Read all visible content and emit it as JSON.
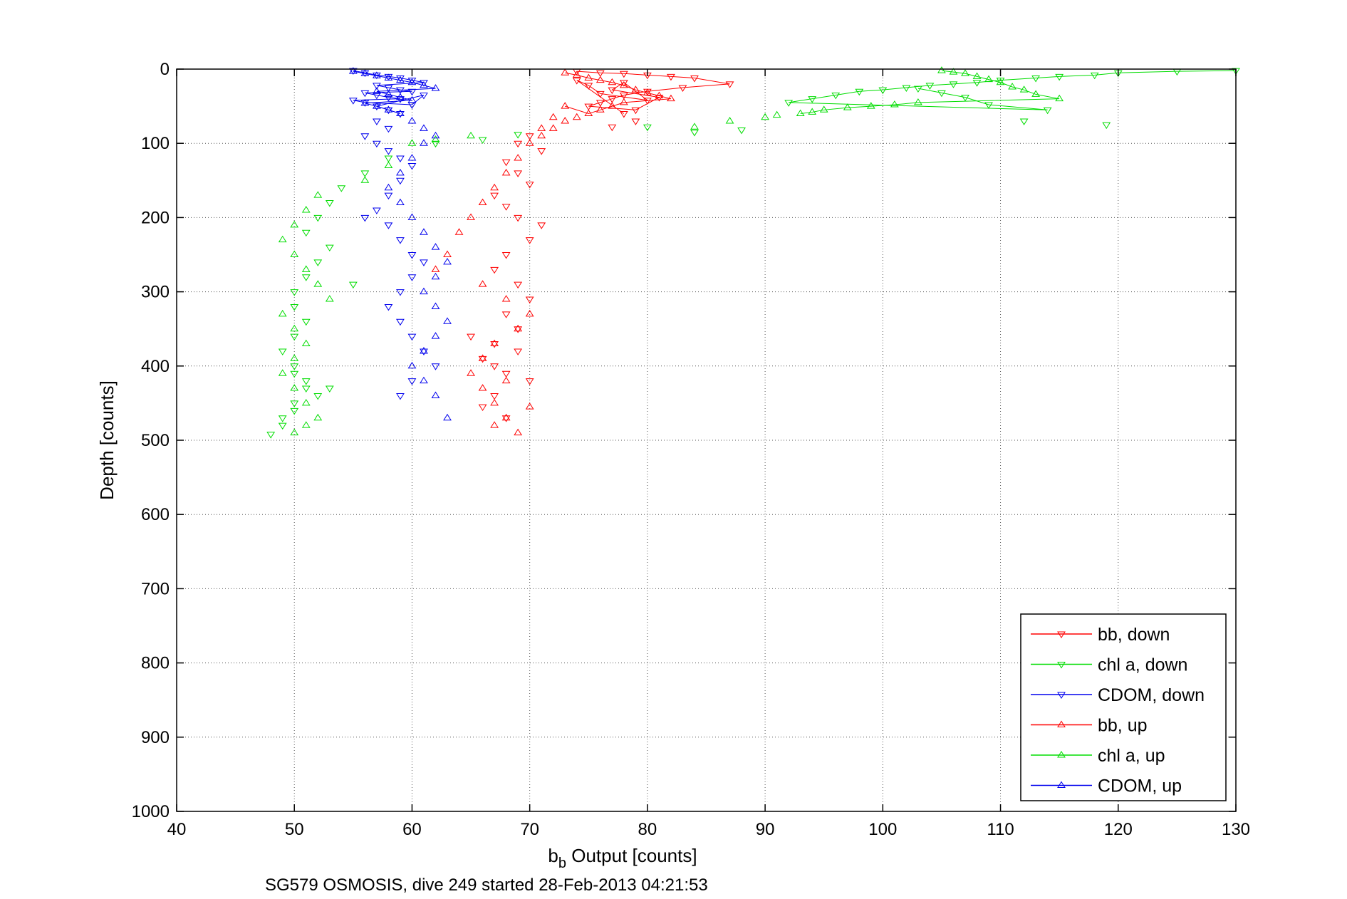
{
  "chart_data": {
    "type": "scatter",
    "title": "",
    "xlabel_main": "b",
    "xlabel_sub": "b",
    "xlabel_rest": " Output [counts]",
    "ylabel": "Depth [counts]",
    "caption": "SG579 OSMOSIS, dive 249 started 28-Feb-2013 04:21:53",
    "xlim": [
      40,
      130
    ],
    "ylim": [
      0,
      1000
    ],
    "y_reversed": true,
    "xticks": [
      "40",
      "50",
      "60",
      "70",
      "80",
      "90",
      "100",
      "110",
      "120",
      "130"
    ],
    "yticks": [
      "0",
      "100",
      "200",
      "300",
      "400",
      "500",
      "600",
      "700",
      "800",
      "900",
      "1000"
    ],
    "grid": true,
    "legend_position": "bottom-right",
    "series": [
      {
        "name": "bb, down",
        "color": "#ff0000",
        "marker": "triangle-down",
        "x": [
          74,
          76,
          78,
          80,
          82,
          84,
          87,
          83,
          80,
          78,
          77,
          76,
          75,
          79,
          81,
          77,
          78,
          80,
          76,
          75,
          74,
          78,
          79,
          77,
          70,
          69,
          71,
          68,
          69,
          70,
          67,
          68,
          69,
          71,
          70,
          68,
          67,
          69,
          70,
          68,
          69,
          67,
          66,
          68,
          70,
          67,
          66,
          68,
          69,
          65,
          67
        ],
        "y": [
          3,
          5,
          6,
          8,
          10,
          12,
          20,
          25,
          30,
          35,
          40,
          45,
          50,
          55,
          38,
          28,
          18,
          42,
          33,
          22,
          15,
          60,
          70,
          78,
          90,
          100,
          110,
          125,
          140,
          155,
          170,
          185,
          200,
          210,
          230,
          250,
          270,
          290,
          310,
          330,
          350,
          370,
          390,
          410,
          420,
          440,
          455,
          470,
          380,
          360,
          400
        ]
      },
      {
        "name": "chl a, down",
        "color": "#00dd00",
        "marker": "triangle-down",
        "x": [
          130,
          125,
          120,
          118,
          115,
          113,
          110,
          108,
          106,
          104,
          102,
          100,
          98,
          96,
          94,
          92,
          112,
          119,
          114,
          109,
          107,
          105,
          103,
          88,
          84,
          80,
          69,
          66,
          62,
          58,
          56,
          54,
          53,
          52,
          51,
          53,
          52,
          51,
          50,
          50,
          51,
          50,
          49,
          50,
          51,
          52,
          50,
          49,
          48,
          49,
          50,
          51,
          50,
          55,
          53
        ],
        "y": [
          2,
          3,
          5,
          8,
          10,
          12,
          15,
          18,
          20,
          22,
          25,
          28,
          30,
          35,
          40,
          45,
          70,
          75,
          55,
          48,
          38,
          32,
          26,
          82,
          85,
          78,
          88,
          95,
          100,
          120,
          140,
          160,
          180,
          200,
          220,
          240,
          260,
          280,
          300,
          320,
          340,
          360,
          380,
          400,
          420,
          440,
          460,
          480,
          492,
          470,
          450,
          430,
          410,
          290,
          430
        ]
      },
      {
        "name": "CDOM, down",
        "color": "#0000ee",
        "marker": "triangle-down",
        "x": [
          55,
          56,
          57,
          58,
          59,
          60,
          61,
          57,
          58,
          59,
          60,
          56,
          57,
          58,
          59,
          55,
          56,
          60,
          61,
          57,
          58,
          59,
          57,
          58,
          56,
          57,
          58,
          59,
          60,
          59,
          58,
          57,
          56,
          58,
          59,
          60,
          61,
          60,
          59,
          58,
          59,
          60,
          61,
          62,
          60,
          59
        ],
        "y": [
          2,
          5,
          8,
          10,
          12,
          15,
          18,
          22,
          25,
          28,
          30,
          32,
          35,
          38,
          40,
          42,
          45,
          48,
          35,
          50,
          55,
          60,
          70,
          80,
          90,
          100,
          110,
          120,
          130,
          150,
          170,
          190,
          200,
          210,
          230,
          250,
          260,
          280,
          300,
          320,
          340,
          360,
          380,
          400,
          420,
          440
        ]
      },
      {
        "name": "bb, up",
        "color": "#ff0000",
        "marker": "triangle-up",
        "x": [
          73,
          74,
          75,
          76,
          77,
          78,
          79,
          80,
          81,
          82,
          78,
          77,
          76,
          75,
          74,
          73,
          72,
          71,
          70,
          69,
          68,
          67,
          66,
          65,
          64,
          63,
          62,
          66,
          68,
          70,
          69,
          67,
          66,
          65,
          66,
          67,
          68,
          69,
          70,
          71,
          72,
          73,
          67,
          68
        ],
        "y": [
          5,
          8,
          12,
          15,
          18,
          22,
          28,
          32,
          36,
          40,
          45,
          50,
          55,
          60,
          65,
          70,
          80,
          90,
          100,
          120,
          140,
          160,
          180,
          200,
          220,
          250,
          270,
          290,
          310,
          330,
          350,
          370,
          390,
          410,
          430,
          450,
          470,
          490,
          455,
          80,
          65,
          50,
          480,
          420
        ]
      },
      {
        "name": "chl a, up",
        "color": "#00dd00",
        "marker": "triangle-up",
        "x": [
          105,
          106,
          107,
          108,
          109,
          110,
          111,
          112,
          113,
          115,
          103,
          101,
          99,
          97,
          95,
          94,
          93,
          91,
          90,
          87,
          84,
          65,
          62,
          60,
          58,
          56,
          52,
          51,
          50,
          49,
          50,
          51,
          52,
          53,
          49,
          50,
          51,
          50,
          49,
          50,
          51,
          52,
          50,
          51
        ],
        "y": [
          2,
          4,
          6,
          10,
          14,
          18,
          24,
          28,
          34,
          40,
          45,
          48,
          50,
          52,
          55,
          58,
          60,
          62,
          65,
          70,
          78,
          90,
          95,
          100,
          130,
          150,
          170,
          190,
          210,
          230,
          250,
          270,
          290,
          310,
          330,
          350,
          370,
          390,
          410,
          430,
          450,
          470,
          490,
          480
        ]
      },
      {
        "name": "CDOM, up",
        "color": "#0000ee",
        "marker": "triangle-up",
        "x": [
          55,
          56,
          57,
          58,
          59,
          60,
          61,
          62,
          57,
          58,
          59,
          60,
          56,
          57,
          58,
          59,
          60,
          61,
          62,
          61,
          60,
          59,
          58,
          59,
          60,
          61,
          62,
          63,
          62,
          61,
          62,
          63,
          62,
          61,
          60,
          61,
          62,
          63
        ],
        "y": [
          3,
          6,
          9,
          12,
          15,
          18,
          22,
          26,
          30,
          34,
          38,
          42,
          46,
          50,
          55,
          60,
          70,
          80,
          90,
          100,
          120,
          140,
          160,
          180,
          200,
          220,
          240,
          260,
          280,
          300,
          320,
          340,
          360,
          380,
          400,
          420,
          440,
          470
        ]
      }
    ]
  }
}
